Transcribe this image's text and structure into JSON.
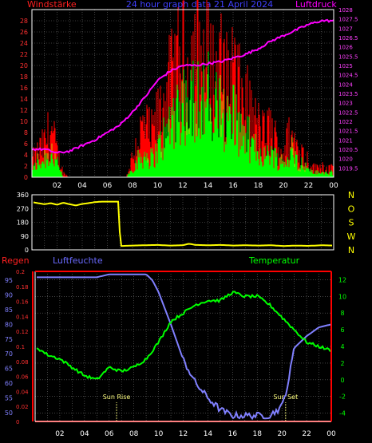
{
  "header": {
    "left_label": "Windstärke",
    "center_title": "24 hour graph data  21 April 2024",
    "right_label": "Luftdruck"
  },
  "colors": {
    "background": "#000000",
    "axis": "#ffffff",
    "grid": "#6e6e6e",
    "wind_gust": "#ff0000",
    "wind_avg": "#00ff00",
    "wind_mid": "#c8c800",
    "pressure": "#ff00ff",
    "direction": "#ffff00",
    "humidity": "#8080ff",
    "temperature": "#00ff00",
    "rain": "#ff0000",
    "title_blue": "#4040ff",
    "left_axis_red": "#ff2020",
    "sun_marker": "#ffff80"
  },
  "x_ticks": [
    "02",
    "04",
    "06",
    "08",
    "10",
    "12",
    "14",
    "16",
    "18",
    "20",
    "22",
    "00"
  ],
  "chart_data": [
    {
      "type": "bar",
      "panel": "wind_and_pressure",
      "x_unit": "hour of day",
      "series": [
        {
          "name": "Windstärke",
          "hours": [
            0,
            0.5,
            1,
            1.5,
            2,
            2.5,
            3,
            3.5,
            4,
            4.5,
            5,
            5.5,
            6,
            6.5,
            7,
            7.5,
            8,
            8.5,
            9,
            9.5,
            10,
            10.5,
            11,
            11.5,
            12,
            12.5,
            13,
            13.5,
            14,
            14.5,
            15,
            15.5,
            16,
            16.5,
            17,
            17.5,
            18,
            18.5,
            19,
            19.5,
            20,
            20.5,
            21,
            21.5,
            22,
            22.5,
            23,
            23.5,
            24
          ],
          "gust": [
            4,
            6,
            8,
            12,
            6,
            1,
            0,
            0,
            0,
            0,
            0,
            0,
            0,
            0,
            0,
            0,
            5,
            10,
            12,
            10,
            14,
            18,
            22,
            25,
            28,
            26,
            30,
            27,
            28,
            24,
            26,
            22,
            26,
            20,
            18,
            14,
            12,
            10,
            12,
            8,
            6,
            10,
            8,
            6,
            4,
            2,
            3,
            2,
            2
          ],
          "avg": [
            2,
            3,
            4,
            5,
            3,
            0,
            0,
            0,
            0,
            0,
            0,
            0,
            0,
            0,
            0,
            0,
            2,
            4,
            5,
            4,
            6,
            9,
            12,
            16,
            18,
            16,
            20,
            17,
            18,
            15,
            16,
            13,
            15,
            11,
            10,
            7,
            6,
            5,
            6,
            4,
            3,
            5,
            4,
            3,
            2,
            1,
            1,
            1,
            1
          ]
        },
        {
          "name": "Luftdruck",
          "hours": [
            0,
            1,
            2,
            3,
            4,
            5,
            6,
            7,
            8,
            9,
            10,
            11,
            12,
            13,
            14,
            15,
            16,
            17,
            18,
            19,
            20,
            21,
            22,
            23,
            24
          ],
          "values": [
            1020.5,
            1020.5,
            1020.3,
            1020.4,
            1020.7,
            1021.0,
            1021.4,
            1021.8,
            1022.5,
            1023.3,
            1024.2,
            1024.7,
            1025.0,
            1025.0,
            1025.1,
            1025.2,
            1025.4,
            1025.6,
            1025.9,
            1026.3,
            1026.6,
            1026.9,
            1027.2,
            1027.4,
            1027.4
          ]
        }
      ],
      "left_axis": {
        "label": "Windstärke",
        "ticks": [
          0,
          2,
          4,
          6,
          8,
          10,
          12,
          14,
          16,
          18,
          20,
          22,
          24,
          26,
          28
        ],
        "range": [
          0,
          30
        ]
      },
      "right_axis": {
        "label": "Luftdruck",
        "ticks": [
          "1019.5",
          "1020",
          "1020.5",
          "1021",
          "1021.5",
          "1022",
          "1022.5",
          "1023",
          "1023.5",
          "1024",
          "1024.5",
          "1025",
          "1025.5",
          "1026",
          "1026.5",
          "1027",
          "1027.5",
          "1028"
        ],
        "range": [
          1019,
          1028
        ]
      },
      "x_range": [
        0,
        24
      ],
      "grid": true
    },
    {
      "type": "line",
      "panel": "wind_direction",
      "series": [
        {
          "name": "direction",
          "hours": [
            0,
            0.5,
            1,
            1.5,
            2,
            2.5,
            3,
            3.5,
            4,
            4.5,
            5,
            5.5,
            6,
            6.5,
            6.95,
            7,
            8,
            9,
            10,
            11,
            12,
            12.5,
            13,
            14,
            15,
            16,
            17,
            18,
            19,
            20,
            21,
            22,
            23,
            24
          ],
          "values": [
            312,
            305,
            298,
            305,
            295,
            308,
            298,
            290,
            300,
            305,
            312,
            315,
            315,
            315,
            315,
            25,
            28,
            30,
            32,
            28,
            30,
            40,
            32,
            30,
            32,
            28,
            30,
            28,
            30,
            25,
            28,
            26,
            30,
            28
          ]
        }
      ],
      "left_axis": {
        "ticks": [
          0,
          90,
          180,
          270,
          360
        ],
        "range": [
          0,
          360
        ]
      },
      "right_axis": {
        "ticks": [
          "N",
          "W",
          "S",
          "O",
          "N"
        ]
      },
      "x_range": [
        0,
        24
      ],
      "grid": true
    },
    {
      "type": "line",
      "panel": "humidity_temperature_rain",
      "series": [
        {
          "name": "Luftfeuchte",
          "hours": [
            0,
            1,
            2,
            3,
            4,
            5,
            6,
            7,
            8,
            9,
            9.5,
            10,
            11,
            12,
            13,
            14,
            15,
            16,
            17,
            18,
            19,
            20,
            20.5,
            21,
            22,
            23,
            24
          ],
          "values": [
            96,
            96,
            96,
            96,
            96,
            96,
            97,
            97,
            97,
            97,
            95,
            91,
            80,
            68,
            60,
            55,
            51,
            49,
            49,
            49,
            49,
            52,
            60,
            72,
            76,
            79,
            80
          ]
        },
        {
          "name": "Temperatur",
          "hours": [
            0,
            1,
            2,
            3,
            4,
            5,
            6,
            7,
            8,
            9,
            10,
            11,
            12,
            13,
            14,
            15,
            16,
            17,
            18,
            19,
            20,
            21,
            22,
            23,
            24
          ],
          "values": [
            4,
            3,
            2.5,
            1.5,
            0.5,
            0,
            1.5,
            1,
            1.5,
            2.5,
            4.5,
            7,
            8,
            9,
            9.5,
            9.5,
            10.5,
            10,
            10,
            9,
            7.5,
            6,
            4.5,
            4,
            3.5
          ]
        },
        {
          "name": "Regen",
          "hours": [
            0,
            24
          ],
          "values": [
            0,
            0
          ]
        }
      ],
      "left_axis": {
        "label": "Luftfeuchte",
        "ticks": [
          50,
          55,
          60,
          65,
          70,
          75,
          80,
          85,
          90,
          95
        ],
        "range": [
          47,
          98
        ]
      },
      "rain_axis": {
        "label": "Regen",
        "ticks": [
          "0",
          "0.02",
          "0.04",
          "0.06",
          "0.08",
          "0.1",
          "0.12",
          "0.14",
          "0.16",
          "0.18",
          "0.2"
        ],
        "range": [
          0,
          0.2
        ]
      },
      "right_axis": {
        "label": "Temperatur",
        "ticks": [
          -4,
          -2,
          0,
          2,
          4,
          6,
          8,
          10,
          12
        ],
        "range": [
          -5,
          13
        ]
      },
      "annotations": [
        {
          "text": "Sun Rise",
          "hour": 6.6
        },
        {
          "text": "Sun Set",
          "hour": 20.3
        }
      ],
      "x_range": [
        0,
        24
      ],
      "grid": true
    }
  ]
}
